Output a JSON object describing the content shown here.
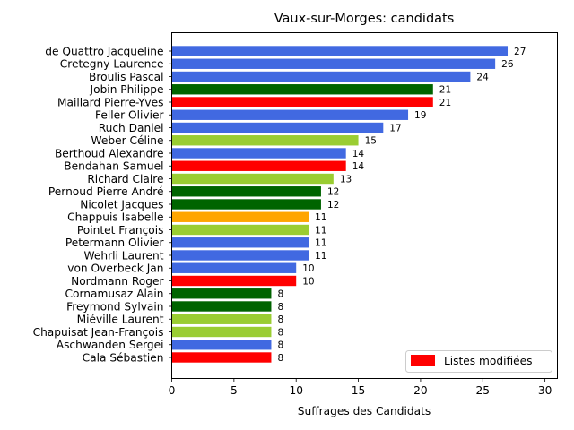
{
  "chart_data": {
    "type": "bar",
    "orientation": "horizontal",
    "title": "Vaux-sur-Morges: candidats",
    "xlabel": "Suffrages des Candidats",
    "ylabel": "",
    "xlim": [
      0,
      31
    ],
    "xticks": [
      0,
      5,
      10,
      15,
      20,
      25,
      30
    ],
    "grid": false,
    "legend": {
      "placement": "lower-right",
      "entries": [
        {
          "label": "Listes modifiées",
          "color": "#ff0000"
        }
      ]
    },
    "categories": [
      "de Quattro Jacqueline",
      "Cretegny Laurence",
      "Broulis Pascal",
      "Jobin Philippe",
      "Maillard Pierre-Yves",
      "Feller Olivier",
      "Ruch Daniel",
      "Weber Céline",
      "Berthoud Alexandre",
      "Bendahan Samuel",
      "Richard Claire",
      "Pernoud Pierre André",
      "Nicolet Jacques",
      "Chappuis Isabelle",
      "Pointet François",
      "Petermann Olivier",
      "Wehrli Laurent",
      "von Overbeck Jan",
      "Nordmann Roger",
      "Cornamusaz Alain",
      "Freymond Sylvain",
      "Miéville Laurent",
      "Chapuisat Jean-François",
      "Aschwanden Sergei",
      "Cala Sébastien"
    ],
    "values": [
      27,
      26,
      24,
      21,
      21,
      19,
      17,
      15,
      14,
      14,
      13,
      12,
      12,
      11,
      11,
      11,
      11,
      10,
      10,
      8,
      8,
      8,
      8,
      8,
      8
    ],
    "colors": [
      "#4169e1",
      "#4169e1",
      "#4169e1",
      "#006400",
      "#ff0000",
      "#4169e1",
      "#4169e1",
      "#9acd32",
      "#4169e1",
      "#ff0000",
      "#9acd32",
      "#006400",
      "#006400",
      "#ffa500",
      "#9acd32",
      "#4169e1",
      "#4169e1",
      "#4169e1",
      "#ff0000",
      "#006400",
      "#006400",
      "#9acd32",
      "#9acd32",
      "#4169e1",
      "#ff0000"
    ]
  }
}
